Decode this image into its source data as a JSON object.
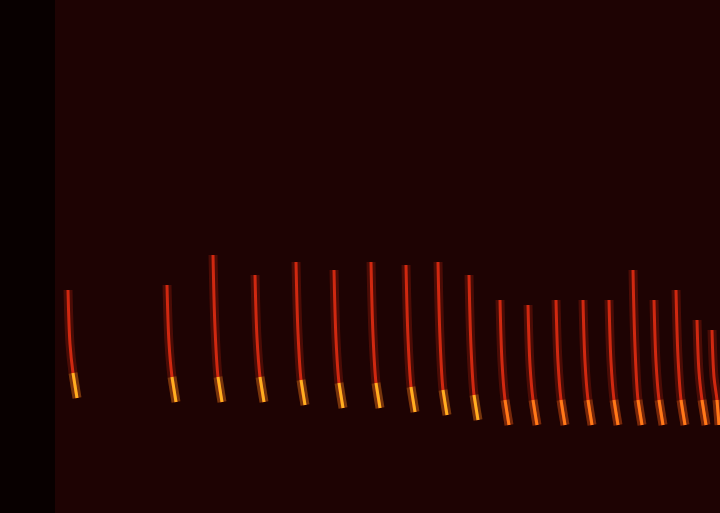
{
  "chart_data": {
    "type": "line",
    "xlim": [
      0,
      665
    ],
    "ylim": [
      0,
      513
    ],
    "xticks": [],
    "yticks": [],
    "tick_labels": false,
    "grid": false,
    "series": [
      {
        "color": "#d02810",
        "x": [
          13,
          15,
          18,
          22
        ],
        "values": [
          223,
          169,
          140,
          115
        ]
      },
      {
        "color": "#ffb020",
        "x": [
          18,
          22
        ],
        "values": [
          140,
          115
        ]
      },
      {
        "color": "#d02810",
        "x": [
          112,
          114,
          117,
          121
        ],
        "values": [
          228,
          170,
          136,
          111
        ]
      },
      {
        "color": "#ffb020",
        "x": [
          117,
          121
        ],
        "values": [
          136,
          111
        ]
      },
      {
        "color": "#d02810",
        "x": [
          158,
          160,
          163,
          167
        ],
        "values": [
          258,
          185,
          136,
          111
        ]
      },
      {
        "color": "#ffb020",
        "x": [
          163,
          167
        ],
        "values": [
          136,
          111
        ]
      },
      {
        "color": "#d02810",
        "x": [
          200,
          202,
          205,
          209
        ],
        "values": [
          238,
          175,
          136,
          111
        ]
      },
      {
        "color": "#ffb020",
        "x": [
          205,
          209
        ],
        "values": [
          136,
          111
        ]
      },
      {
        "color": "#d02810",
        "x": [
          241,
          243,
          246,
          250
        ],
        "values": [
          251,
          180,
          133,
          108
        ]
      },
      {
        "color": "#ffb020",
        "x": [
          246,
          250
        ],
        "values": [
          133,
          108
        ]
      },
      {
        "color": "#d02810",
        "x": [
          279,
          281,
          284,
          288
        ],
        "values": [
          243,
          174,
          130,
          105
        ]
      },
      {
        "color": "#ffb020",
        "x": [
          284,
          288
        ],
        "values": [
          130,
          105
        ]
      },
      {
        "color": "#d02810",
        "x": [
          316,
          318,
          321,
          325
        ],
        "values": [
          251,
          178,
          130,
          105
        ]
      },
      {
        "color": "#ffb020",
        "x": [
          321,
          325
        ],
        "values": [
          130,
          105
        ]
      },
      {
        "color": "#d02810",
        "x": [
          351,
          353,
          356,
          360
        ],
        "values": [
          248,
          175,
          126,
          101
        ]
      },
      {
        "color": "#ffb020",
        "x": [
          356,
          360
        ],
        "values": [
          126,
          101
        ]
      },
      {
        "color": "#d02810",
        "x": [
          383,
          385,
          388,
          392
        ],
        "values": [
          251,
          175,
          123,
          98
        ]
      },
      {
        "color": "#ffb020",
        "x": [
          388,
          392
        ],
        "values": [
          123,
          98
        ]
      },
      {
        "color": "#d02810",
        "x": [
          414,
          416,
          419,
          423
        ],
        "values": [
          238,
          166,
          118,
          93
        ]
      },
      {
        "color": "#ffb020",
        "x": [
          419,
          423
        ],
        "values": [
          118,
          93
        ]
      },
      {
        "color": "#d02810",
        "x": [
          445,
          447,
          450,
          454
        ],
        "values": [
          213,
          151,
          113,
          88
        ]
      },
      {
        "color": "#ff7a18",
        "x": [
          450,
          454
        ],
        "values": [
          113,
          88
        ]
      },
      {
        "color": "#d02810",
        "x": [
          473,
          475,
          478,
          482
        ],
        "values": [
          208,
          148,
          113,
          88
        ]
      },
      {
        "color": "#ff7a18",
        "x": [
          478,
          482
        ],
        "values": [
          113,
          88
        ]
      },
      {
        "color": "#d02810",
        "x": [
          501,
          503,
          506,
          510
        ],
        "values": [
          213,
          151,
          113,
          88
        ]
      },
      {
        "color": "#ff7a18",
        "x": [
          506,
          510
        ],
        "values": [
          113,
          88
        ]
      },
      {
        "color": "#d02810",
        "x": [
          528,
          530,
          533,
          537
        ],
        "values": [
          213,
          151,
          113,
          88
        ]
      },
      {
        "color": "#ff7a18",
        "x": [
          533,
          537
        ],
        "values": [
          113,
          88
        ]
      },
      {
        "color": "#d02810",
        "x": [
          554,
          556,
          559,
          563
        ],
        "values": [
          213,
          151,
          113,
          88
        ]
      },
      {
        "color": "#ff7a18",
        "x": [
          559,
          563
        ],
        "values": [
          113,
          88
        ]
      },
      {
        "color": "#d02810",
        "x": [
          578,
          580,
          583,
          587
        ],
        "values": [
          243,
          166,
          113,
          88
        ]
      },
      {
        "color": "#ff7a18",
        "x": [
          583,
          587
        ],
        "values": [
          113,
          88
        ]
      },
      {
        "color": "#d02810",
        "x": [
          599,
          601,
          604,
          608
        ],
        "values": [
          213,
          151,
          113,
          88
        ]
      },
      {
        "color": "#ff7a18",
        "x": [
          604,
          608
        ],
        "values": [
          113,
          88
        ]
      },
      {
        "color": "#d02810",
        "x": [
          621,
          623,
          626,
          630
        ],
        "values": [
          223,
          156,
          113,
          88
        ]
      },
      {
        "color": "#ff7a18",
        "x": [
          626,
          630
        ],
        "values": [
          113,
          88
        ]
      },
      {
        "color": "#d02810",
        "x": [
          642,
          644,
          647,
          651
        ],
        "values": [
          193,
          141,
          113,
          88
        ]
      },
      {
        "color": "#ff7a18",
        "x": [
          647,
          651
        ],
        "values": [
          113,
          88
        ]
      },
      {
        "color": "#d02810",
        "x": [
          657,
          659,
          662,
          664
        ],
        "values": [
          183,
          136,
          113,
          88
        ]
      },
      {
        "color": "#ff7a18",
        "x": [
          662,
          664
        ],
        "values": [
          113,
          88
        ]
      }
    ]
  }
}
